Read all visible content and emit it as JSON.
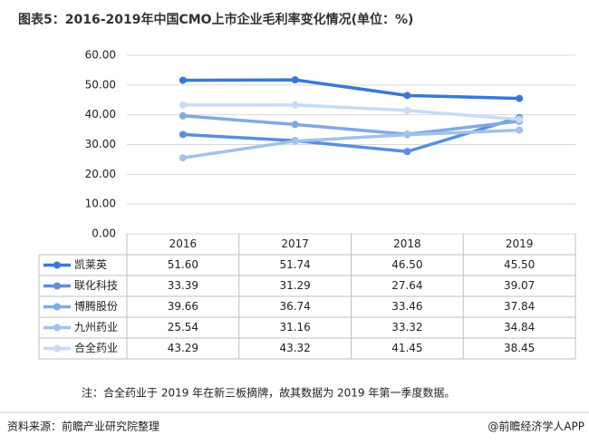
{
  "chart_data": {
    "type": "line",
    "title": "图表5：2016-2019年中国CMO上市企业毛利率变化情况(单位：%)",
    "categories": [
      "2016",
      "2017",
      "2018",
      "2019"
    ],
    "series": [
      {
        "name": "凯莱英",
        "color": "#3a78d6",
        "values": [
          51.6,
          51.74,
          46.5,
          45.5
        ],
        "value_labels": [
          "51.60",
          "51.74",
          "46.50",
          "45.50"
        ]
      },
      {
        "name": "联化科技",
        "color": "#5a8fdc",
        "values": [
          33.39,
          31.29,
          27.64,
          39.07
        ],
        "value_labels": [
          "33.39",
          "31.29",
          "27.64",
          "39.07"
        ]
      },
      {
        "name": "博腾股份",
        "color": "#82a9e3",
        "values": [
          39.66,
          36.74,
          33.46,
          37.84
        ],
        "value_labels": [
          "39.66",
          "36.74",
          "33.46",
          "37.84"
        ]
      },
      {
        "name": "九州药业",
        "color": "#a3c1ec",
        "values": [
          25.54,
          31.16,
          33.32,
          34.84
        ],
        "value_labels": [
          "25.54",
          "31.16",
          "33.32",
          "34.84"
        ]
      },
      {
        "name": "合全药业",
        "color": "#c6dcf5",
        "values": [
          43.29,
          43.32,
          41.45,
          38.45
        ],
        "value_labels": [
          "43.29",
          "43.32",
          "41.45",
          "38.45"
        ]
      }
    ],
    "ylim": [
      0,
      60
    ],
    "yticks": [
      {
        "value": 0,
        "label": "0.00"
      },
      {
        "value": 10,
        "label": "10.00"
      },
      {
        "value": 20,
        "label": "20.00"
      },
      {
        "value": 30,
        "label": "30.00"
      },
      {
        "value": 40,
        "label": "40.00"
      },
      {
        "value": 50,
        "label": "50.00"
      },
      {
        "value": 60,
        "label": "60.00"
      }
    ],
    "grid": true,
    "note": "注：合全药业于 2019 年在新三板摘牌，故其数据为 2019 年第一季度数据。",
    "source": "资料来源：前瞻产业研究院整理",
    "brand": "@前瞻经济学人APP"
  }
}
